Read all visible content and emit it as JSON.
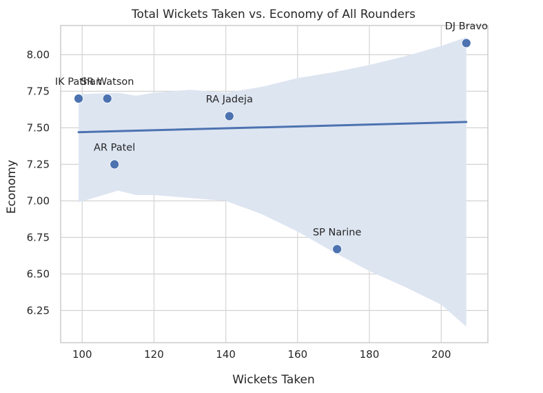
{
  "chart_data": {
    "type": "scatter",
    "title": "Total Wickets Taken vs. Economy of All Rounders",
    "xlabel": "Wickets Taken",
    "ylabel": "Economy",
    "xlim": [
      94,
      213
    ],
    "ylim": [
      6.03,
      8.2
    ],
    "xticks": [
      100,
      120,
      140,
      160,
      180,
      200
    ],
    "yticks": [
      6.25,
      6.5,
      6.75,
      7.0,
      7.25,
      7.5,
      7.75,
      8.0
    ],
    "xtick_labels": [
      "100",
      "120",
      "140",
      "160",
      "180",
      "200"
    ],
    "ytick_labels": [
      "6.25",
      "6.50",
      "6.75",
      "7.00",
      "7.25",
      "7.50",
      "7.75",
      "8.00"
    ],
    "grid": true,
    "points": [
      {
        "label": "IK Pathan",
        "x": 99,
        "y": 7.7
      },
      {
        "label": "SR Watson",
        "x": 107,
        "y": 7.7
      },
      {
        "label": "AR Patel",
        "x": 109,
        "y": 7.25
      },
      {
        "label": "RA Jadeja",
        "x": 141,
        "y": 7.58
      },
      {
        "label": "SP Narine",
        "x": 171,
        "y": 6.67
      },
      {
        "label": "DJ Bravo",
        "x": 207,
        "y": 8.08
      }
    ],
    "regression": {
      "x": [
        99,
        207
      ],
      "y": [
        7.47,
        7.54
      ]
    },
    "confidence_band": {
      "x": [
        99,
        110,
        115,
        120,
        130,
        140,
        150,
        160,
        170,
        180,
        190,
        200,
        207
      ],
      "upper": [
        7.73,
        7.74,
        7.72,
        7.74,
        7.76,
        7.74,
        7.78,
        7.84,
        7.88,
        7.93,
        7.99,
        8.06,
        8.12
      ],
      "lower": [
        6.99,
        7.07,
        7.04,
        7.04,
        7.02,
        7.0,
        6.91,
        6.79,
        6.65,
        6.52,
        6.41,
        6.29,
        6.14
      ]
    },
    "colors": {
      "point": "#4c72b0",
      "line": "#4c72b0",
      "band": "#dde5f1",
      "grid": "#d3d3d3",
      "axes": "#cccccc"
    }
  }
}
